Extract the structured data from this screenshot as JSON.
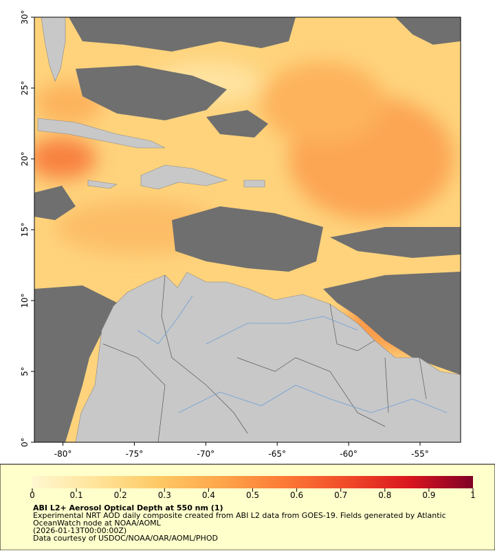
{
  "map": {
    "xlim": [
      -82,
      -52.16
    ],
    "ylim": [
      0,
      30
    ],
    "xticks": [
      {
        "value": -80,
        "label": "-80°"
      },
      {
        "value": -75,
        "label": "-75°"
      },
      {
        "value": -70,
        "label": "-70°"
      },
      {
        "value": -65,
        "label": "-65°"
      },
      {
        "value": -60,
        "label": "-60°"
      },
      {
        "value": -55,
        "label": "-55°"
      }
    ],
    "yticks": [
      {
        "value": 0,
        "label": "0°"
      },
      {
        "value": 5,
        "label": "5°"
      },
      {
        "value": 10,
        "label": "10°"
      },
      {
        "value": 15,
        "label": "15°"
      },
      {
        "value": 20,
        "label": "20°"
      },
      {
        "value": 25,
        "label": "25°"
      },
      {
        "value": 30,
        "label": "30°"
      }
    ]
  },
  "colorbar": {
    "lim": [
      0,
      1
    ],
    "ticks": [
      0,
      0.1,
      0.2,
      0.3,
      0.4,
      0.5,
      0.6,
      0.7,
      0.8,
      0.9,
      1
    ],
    "colors": [
      "#fff7d0",
      "#ffe49a",
      "#fec965",
      "#fda64a",
      "#fc7a36",
      "#f04a28",
      "#d9151f",
      "#800026"
    ]
  },
  "caption": {
    "title": "ABI L2+ Aerosol Optical Depth at 550 nm (1)",
    "lines": [
      "Experimental NRT AOD daily composite created from ABI L2 data from GOES-19. Fields generated by Atlantic",
      "OceanWatch node at NOAA/AOML",
      "(2026-01-13T00:00:00Z)",
      "Data courtesy of USDOC/NOAA/OAR/AOML/PHOD"
    ]
  }
}
